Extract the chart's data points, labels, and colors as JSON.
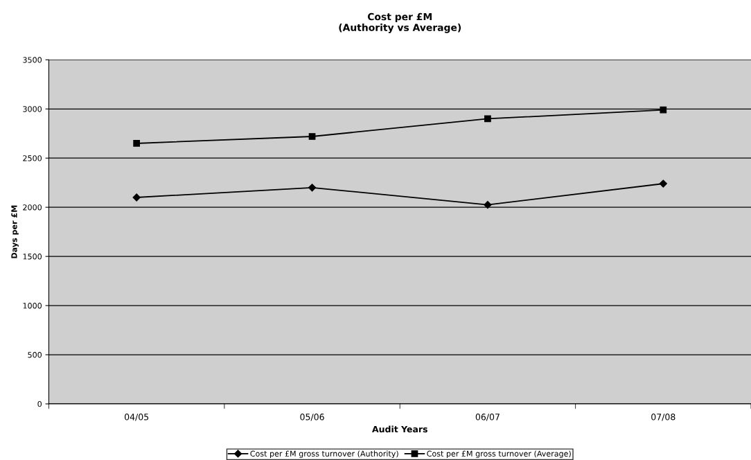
{
  "chart_data": {
    "type": "line",
    "title": "Cost per £M\n(Authority vs Average)",
    "xlabel": "Audit Years",
    "ylabel": "Days per £M",
    "categories": [
      "04/05",
      "05/06",
      "06/07",
      "07/08"
    ],
    "series": [
      {
        "name": "Cost per £M gross turnover (Authority)",
        "color": "#000000",
        "marker": "diamond",
        "values": [
          2100,
          2200,
          2025,
          2240
        ]
      },
      {
        "name": "Cost per £M gross turnover (Average)",
        "color": "#000000",
        "marker": "square",
        "values": [
          2650,
          2720,
          2900,
          2990
        ]
      }
    ],
    "ylim": [
      0,
      3500
    ],
    "yticks": [
      0,
      500,
      1000,
      1500,
      2000,
      2500,
      3000,
      3500
    ],
    "grid": "y",
    "legend": "bottom",
    "line_style": "solid"
  }
}
